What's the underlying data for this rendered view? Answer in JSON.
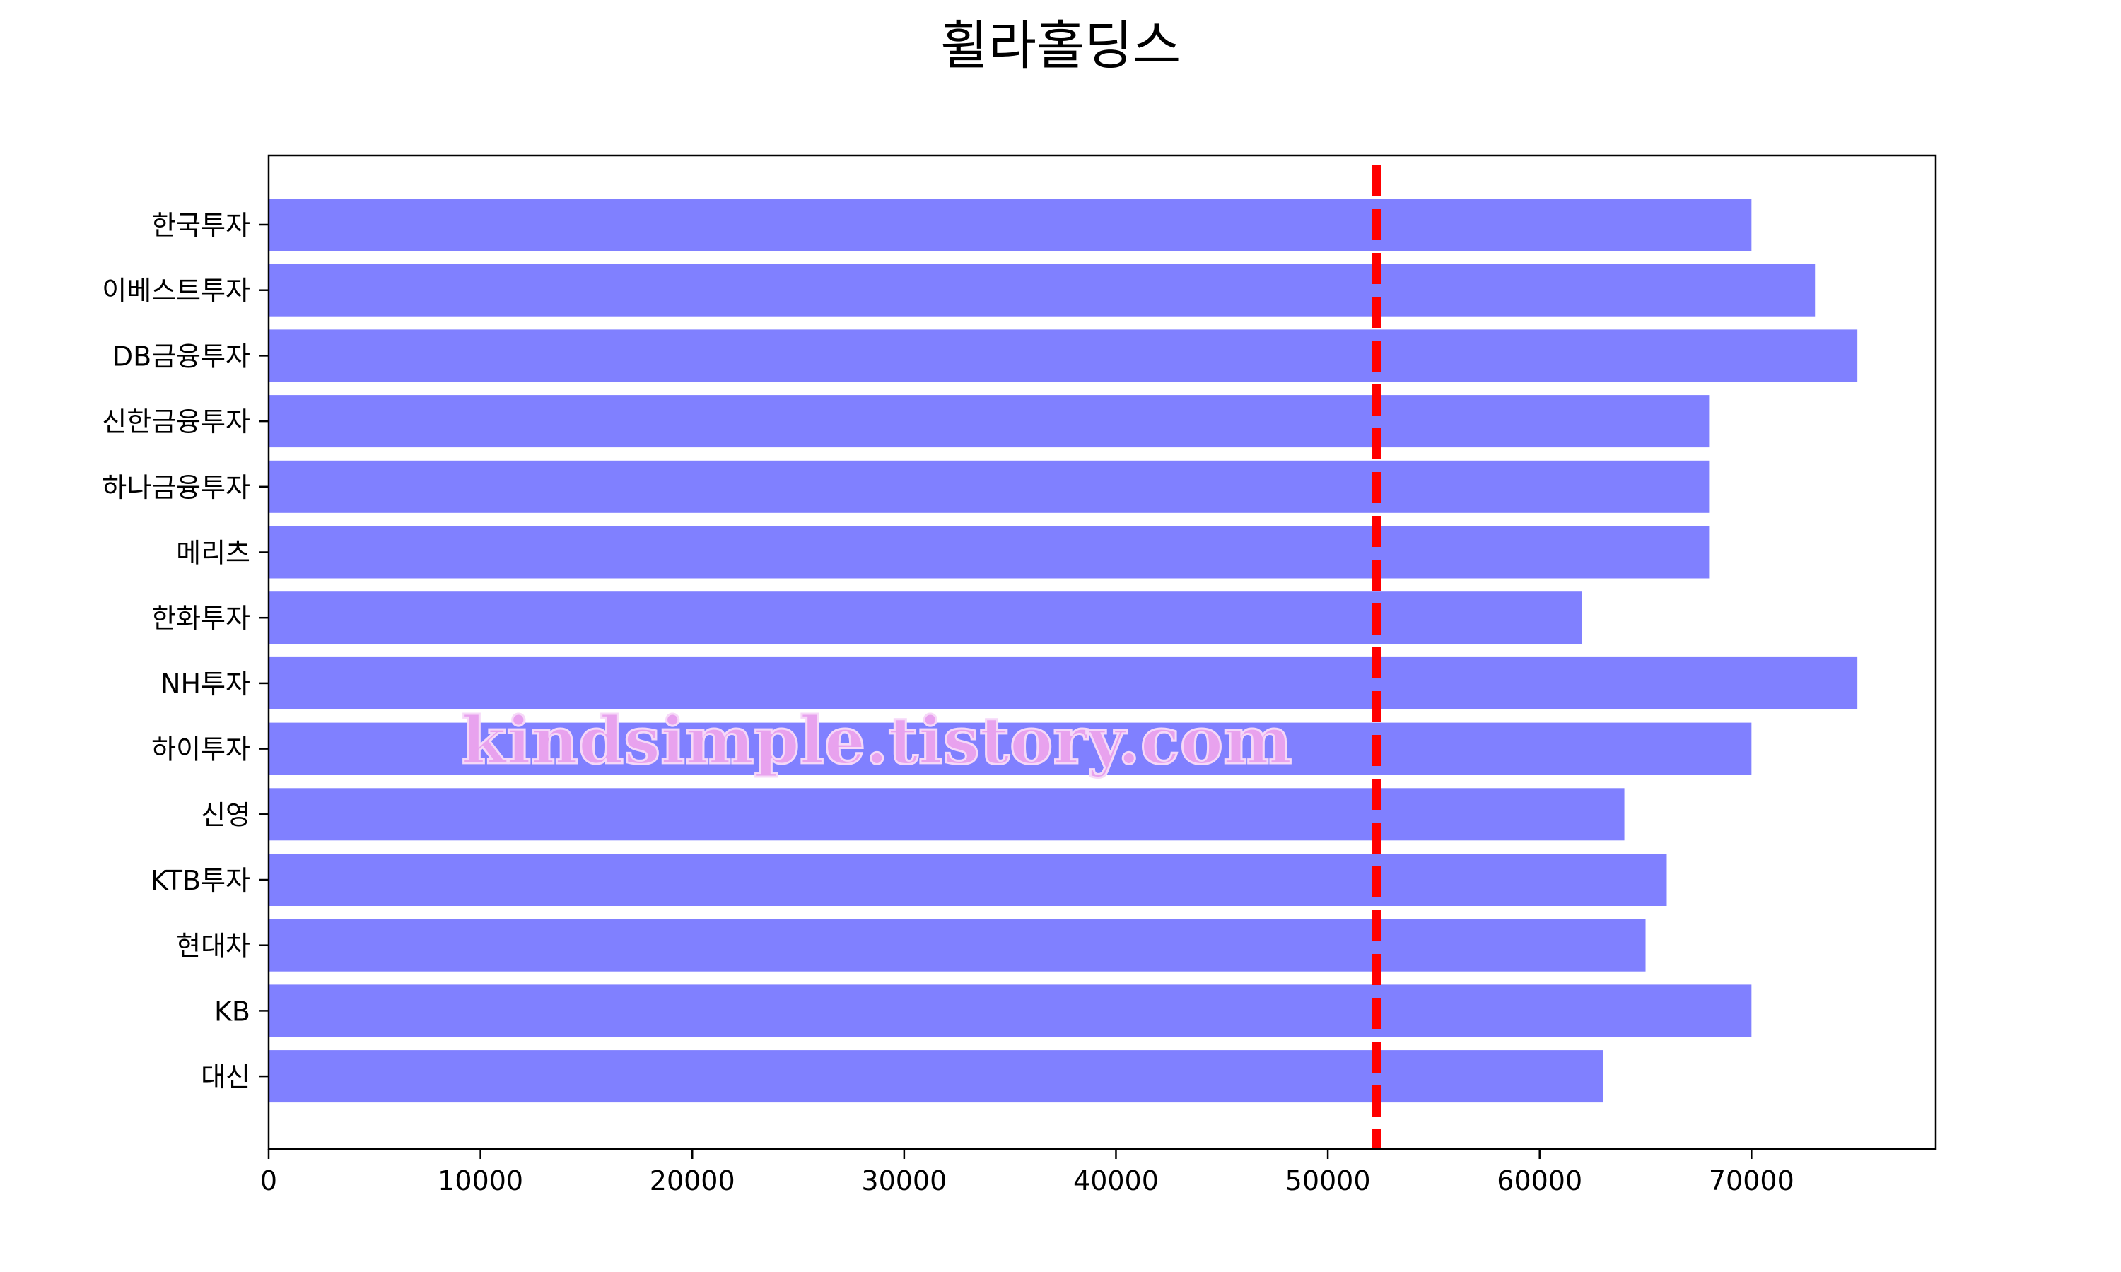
{
  "chart_data": {
    "type": "bar",
    "orientation": "horizontal",
    "title": "휠라홀딩스",
    "categories": [
      "한국투자",
      "이베스트투자",
      "DB금융투자",
      "신한금융투자",
      "하나금융투자",
      "메리츠",
      "한화투자",
      "NH투자",
      "하이투자",
      "신영",
      "KTB투자",
      "현대차",
      "KB",
      "대신"
    ],
    "values": [
      70000,
      73000,
      75000,
      68000,
      68000,
      68000,
      62000,
      75000,
      70000,
      64000,
      66000,
      65000,
      70000,
      63000
    ],
    "xlim": [
      0,
      78700
    ],
    "xticks": [
      0,
      10000,
      20000,
      30000,
      40000,
      50000,
      60000,
      70000
    ],
    "xtick_labels": [
      "0",
      "10000",
      "20000",
      "30000",
      "40000",
      "50000",
      "60000",
      "70000"
    ],
    "reference_line": {
      "value": 52300,
      "style": "dashed",
      "color": "#ff0000"
    },
    "bar_color": "#8080ff",
    "grid": false,
    "legend": "none"
  },
  "watermark": {
    "text": "kindsimple.tistory.com",
    "color": "#e8a2ee"
  }
}
